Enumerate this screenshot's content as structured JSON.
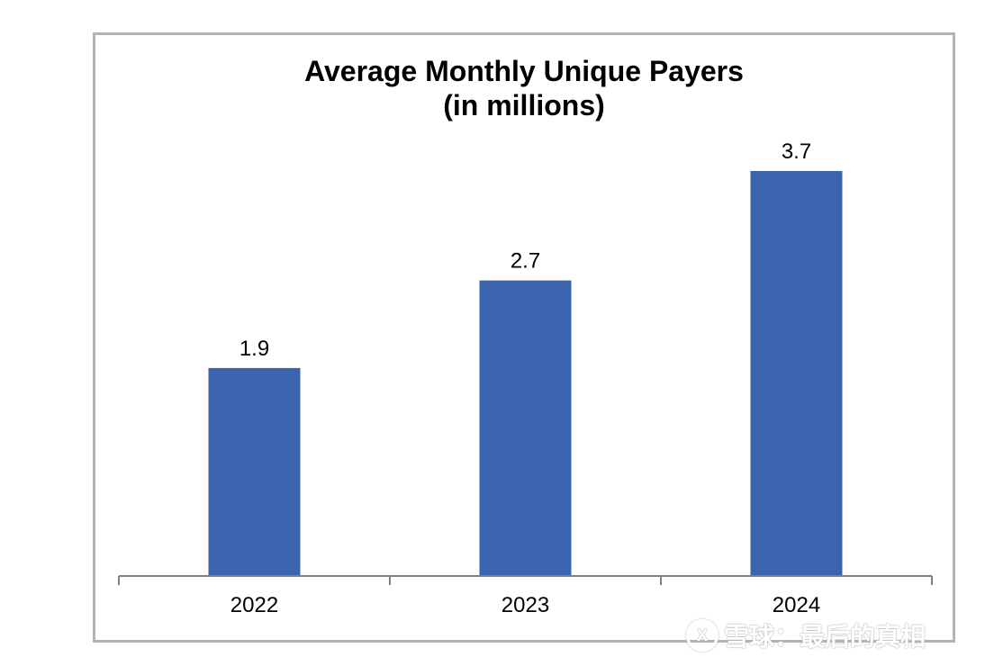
{
  "chart_data": {
    "type": "bar",
    "title": "Average Monthly Unique Payers\n(in millions)",
    "title_lines": [
      "Average Monthly Unique Payers",
      "(in millions)"
    ],
    "categories": [
      "2022",
      "2023",
      "2024"
    ],
    "values": [
      1.9,
      2.7,
      3.7
    ],
    "data_labels": [
      "1.9",
      "2.7",
      "3.7"
    ],
    "ylim": [
      0,
      3.7
    ],
    "grid": false,
    "legend": "none",
    "bar_color": "#3c63ad"
  },
  "watermark": {
    "logo_text": "X",
    "text": "雪球：最后的真相"
  }
}
